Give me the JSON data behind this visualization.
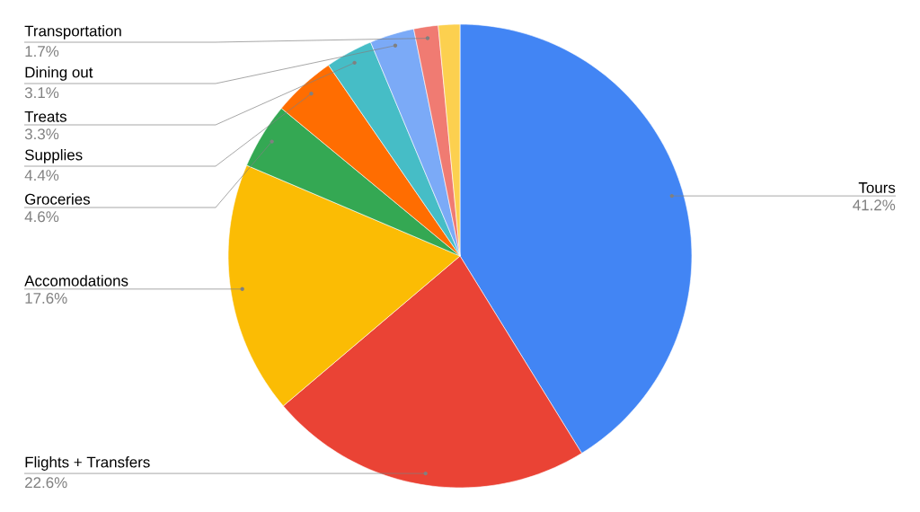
{
  "chart_data": {
    "type": "pie",
    "categories": [
      "Tours",
      "Flights + Transfers",
      "Accomodations",
      "Groceries",
      "Supplies",
      "Treats",
      "Dining out",
      "Transportation",
      null
    ],
    "values": [
      41.2,
      22.6,
      17.6,
      4.6,
      4.4,
      3.3,
      3.1,
      1.7,
      1.5
    ],
    "colors": [
      "#4285f4",
      "#ea4335",
      "#fbbc04",
      "#34a853",
      "#ff6d01",
      "#46bdc6",
      "#7baaf7",
      "#f07b72",
      "#fcd04f"
    ],
    "value_labels": [
      "41.2%",
      "22.6%",
      "17.6%",
      "4.6%",
      "4.4%",
      "3.3%",
      "3.1%",
      "1.7%",
      null
    ]
  }
}
